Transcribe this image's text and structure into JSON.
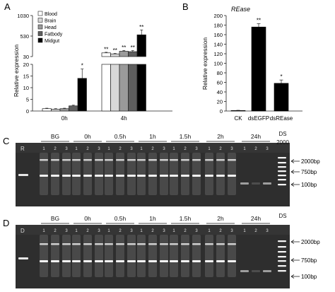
{
  "chart_data": [
    {
      "panel": "A",
      "type": "bar",
      "ylabel": "Relative expression",
      "y_ticks_lower": [
        "0",
        "5",
        "10",
        "15",
        "20"
      ],
      "y_ticks_upper": [
        "30",
        "530",
        "1030"
      ],
      "ylim_lower": [
        0,
        20
      ],
      "ylim_upper": [
        30,
        1030
      ],
      "categories": [
        "0h",
        "4h"
      ],
      "series": [
        {
          "name": "Blood",
          "color": "#ffffff",
          "values": [
            1.0,
            120
          ]
        },
        {
          "name": "Brain",
          "color": "#d8d8d8",
          "values": [
            0.8,
            95
          ]
        },
        {
          "name": "Head",
          "color": "#9a9a9a",
          "values": [
            1.0,
            160
          ]
        },
        {
          "name": "Fatbody",
          "color": "#5e5e5e",
          "values": [
            2.2,
            150
          ]
        },
        {
          "name": "Midgut",
          "color": "#000000",
          "values": [
            14.0,
            560
          ]
        }
      ],
      "errors": [
        [
          0.2,
          15
        ],
        [
          0.2,
          12
        ],
        [
          0.2,
          20
        ],
        [
          0.3,
          25
        ],
        [
          4.0,
          120
        ]
      ],
      "annotations": [
        [
          "",
          "**"
        ],
        [
          "",
          "**"
        ],
        [
          "",
          "**"
        ],
        [
          "",
          "**"
        ],
        [
          "*",
          "**"
        ]
      ],
      "legend": "top-left"
    },
    {
      "panel": "B",
      "type": "bar",
      "title": "REase",
      "ylabel": "Relative expression",
      "ylim": [
        0,
        200
      ],
      "y_ticks": [
        0,
        20,
        40,
        60,
        80,
        100,
        120,
        140,
        160,
        180,
        200
      ],
      "categories": [
        "CK",
        "dsEGFP",
        "dsREase"
      ],
      "values": [
        1,
        176,
        58
      ],
      "errors": [
        0.5,
        7,
        7
      ],
      "annotations": [
        "",
        "**",
        "*"
      ]
    }
  ],
  "gels": [
    {
      "panel": "C",
      "row_label": "R",
      "groups": [
        "BG",
        "0h",
        "0.5h",
        "1h",
        "1.5h",
        "2h",
        "24h"
      ],
      "lane_numbers": [
        "1",
        "2",
        "3"
      ],
      "ladder": "DS\n2000",
      "ladder_title": "DS",
      "ladder_top": "2000",
      "markers": [
        "2000bp",
        "750bp",
        "100bp"
      ]
    },
    {
      "panel": "D",
      "row_label": "D",
      "groups": [
        "BG",
        "0h",
        "0.5h",
        "1h",
        "1.5h",
        "2h",
        "24h"
      ],
      "lane_numbers": [
        "1",
        "2",
        "3"
      ],
      "ladder_title": "DS",
      "ladder_top": "2000",
      "markers": [
        "2000bp",
        "750bp",
        "100bp"
      ]
    }
  ]
}
